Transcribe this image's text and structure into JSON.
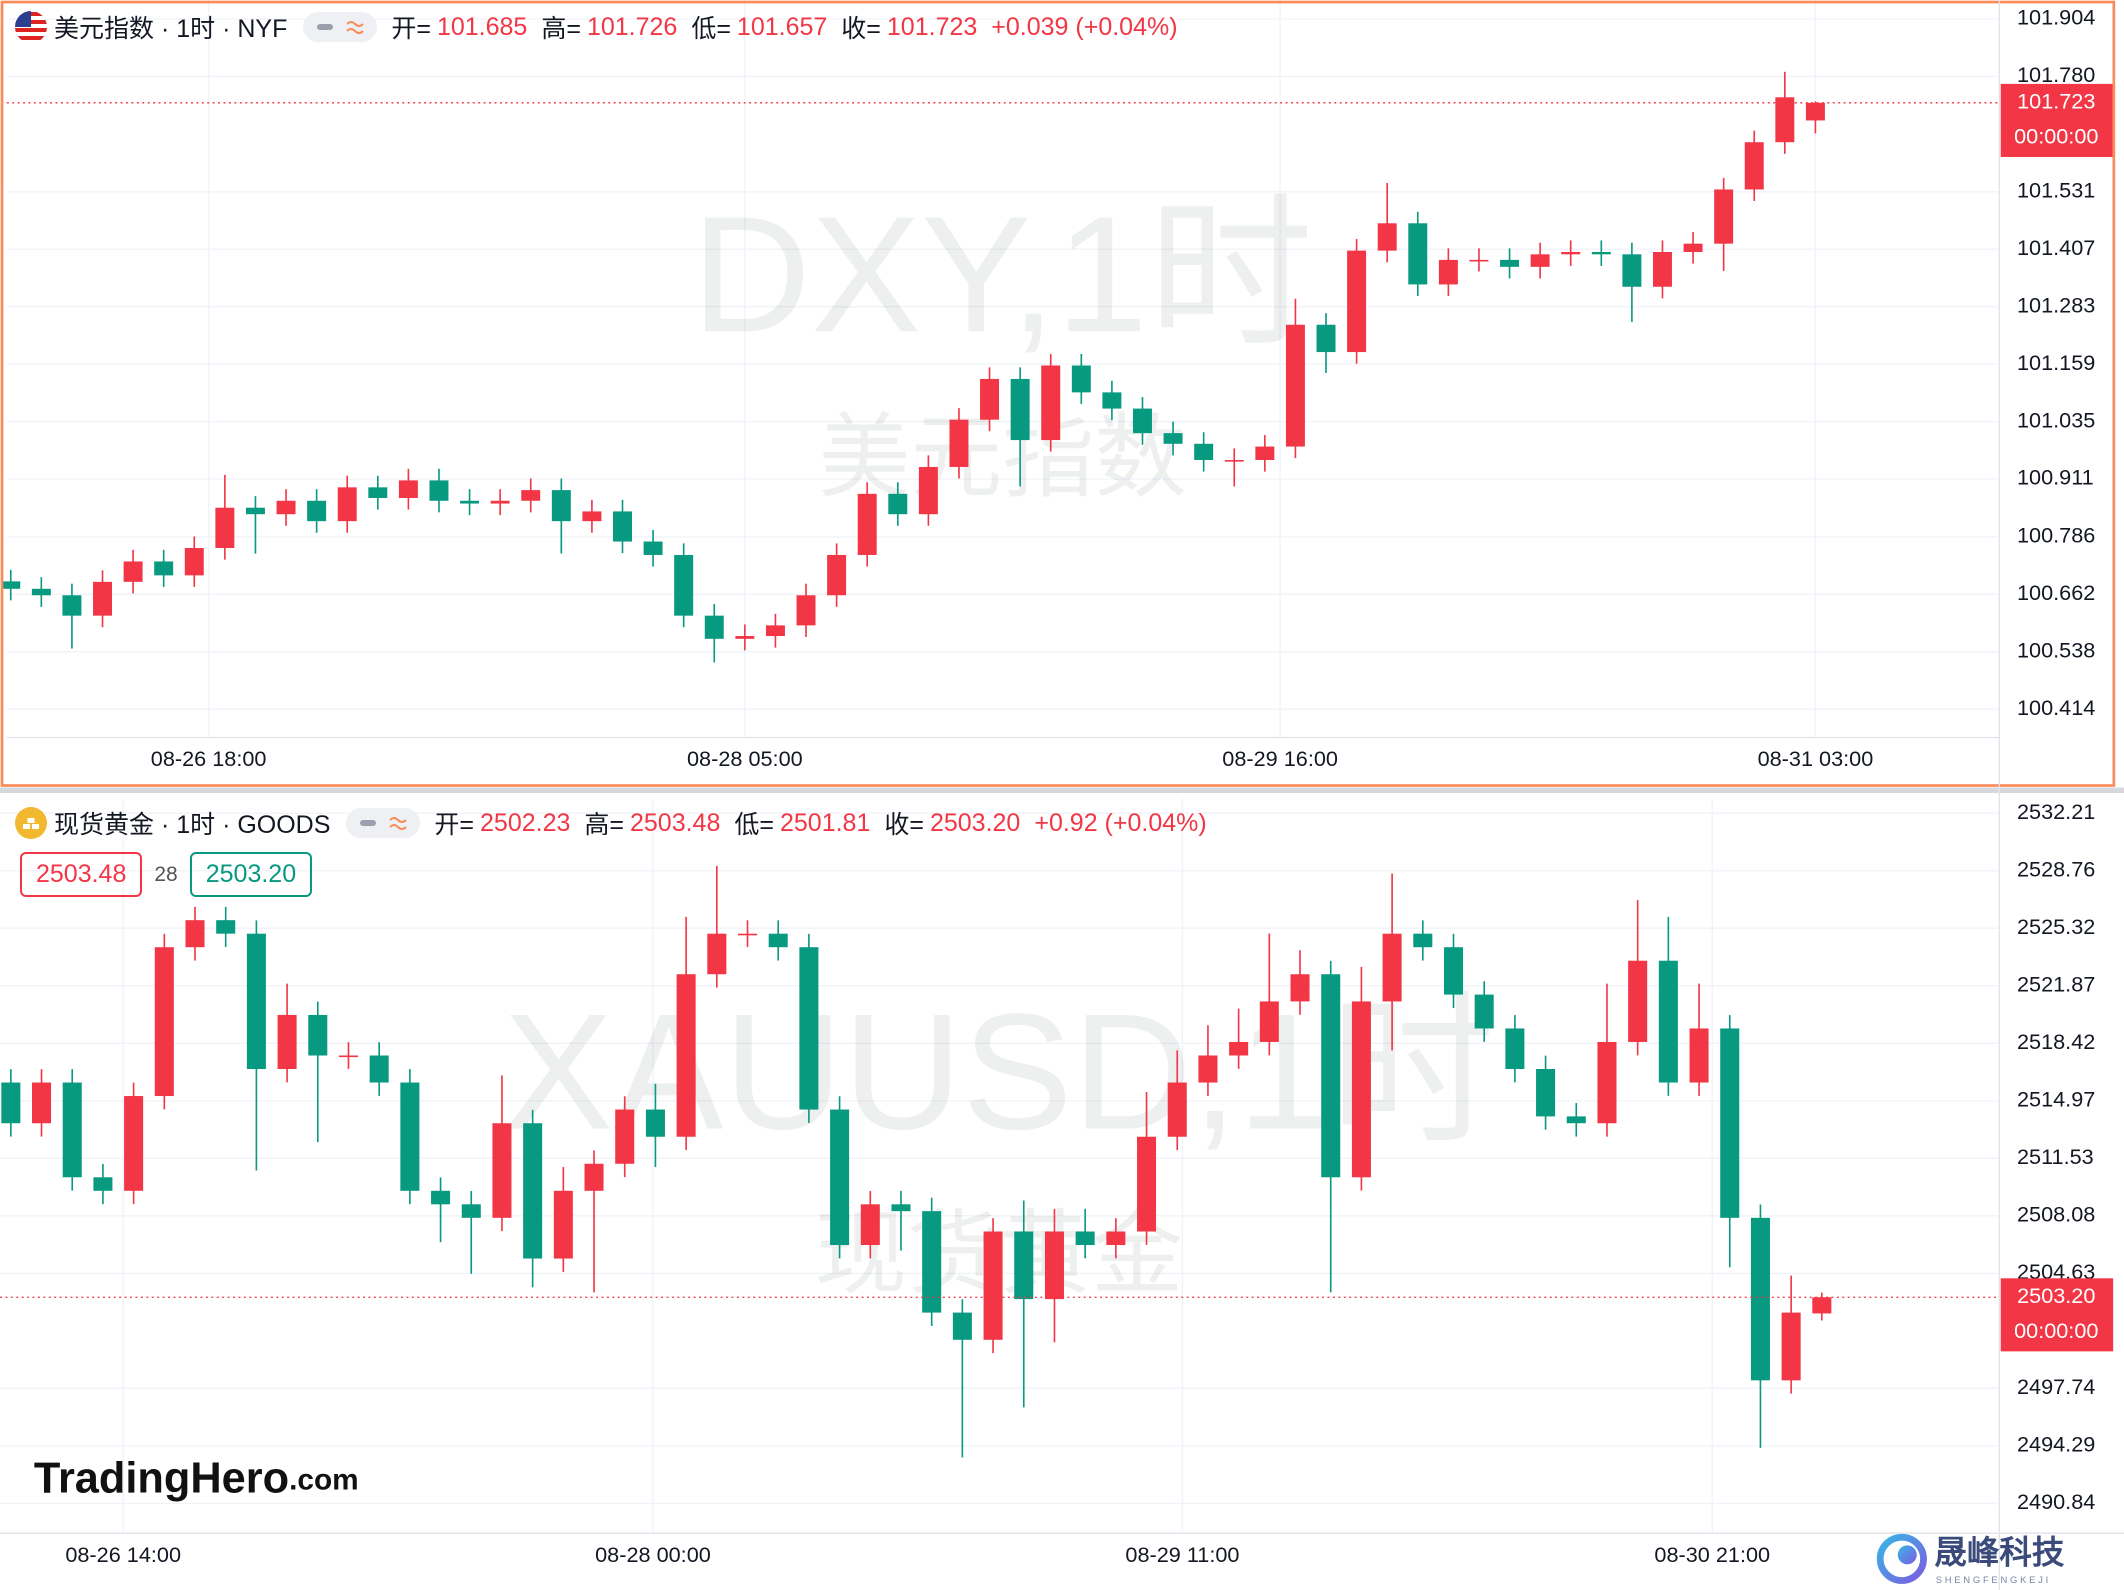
{
  "chart_data": [
    {
      "type": "candlestick",
      "title": "美元指数 · 1时 · NYF",
      "legend": {
        "open_label": "开=",
        "open": "101.685",
        "high_label": "高=",
        "high": "101.726",
        "low_label": "低=",
        "low": "101.657",
        "close_label": "收=",
        "close": "101.723",
        "change": "+0.039 (+0.04%)"
      },
      "watermark": "DXY,1时",
      "watermark_name": "美元指数",
      "price_tag": {
        "price": "101.723",
        "countdown": "00:00:00"
      },
      "colors": {
        "up": "#f23645",
        "down": "#089981"
      },
      "xlim": [
        -0.13,
        64.97
      ],
      "xticks": [
        {
          "value": 6.47,
          "label": "08-26 18:00"
        },
        {
          "value": 24.0,
          "label": "08-28 05:00"
        },
        {
          "value": 41.5,
          "label": "08-29 16:00"
        },
        {
          "value": 59.0,
          "label": "08-31 03:00"
        }
      ],
      "ylim": [
        100.353,
        101.945
      ],
      "yticks": [
        100.414,
        100.538,
        100.662,
        100.786,
        100.911,
        101.035,
        101.159,
        101.283,
        101.407,
        101.531,
        {
          "value": 101.78,
          "label": "101.780"
        },
        101.904
      ],
      "grid": true,
      "open": [
        100.69,
        100.674,
        100.66,
        100.616,
        100.689,
        100.733,
        100.703,
        100.762,
        100.849,
        100.835,
        100.864,
        100.82,
        100.893,
        100.87,
        100.908,
        100.864,
        100.858,
        100.864,
        100.887,
        100.82,
        100.841,
        100.776,
        100.747,
        100.616,
        100.566,
        100.572,
        100.595,
        100.66,
        100.747,
        100.879,
        100.835,
        100.937,
        101.039,
        101.127,
        100.995,
        101.156,
        101.098,
        101.063,
        101.01,
        100.987,
        100.952,
        100.952,
        100.981,
        101.244,
        101.185,
        101.404,
        101.463,
        101.331,
        101.384,
        101.384,
        101.369,
        101.396,
        101.401,
        101.396,
        101.326,
        101.401,
        101.419,
        101.536,
        101.638,
        101.685
      ],
      "high": [
        100.715,
        100.699,
        100.685,
        100.714,
        100.758,
        100.758,
        100.787,
        100.92,
        100.874,
        100.889,
        100.889,
        100.918,
        100.918,
        100.933,
        100.933,
        100.889,
        100.889,
        100.912,
        100.912,
        100.866,
        100.866,
        100.801,
        100.772,
        100.641,
        100.597,
        100.62,
        100.685,
        100.772,
        100.904,
        100.904,
        100.962,
        101.064,
        101.152,
        101.152,
        101.181,
        101.181,
        101.123,
        101.088,
        101.035,
        101.012,
        100.977,
        101.006,
        101.3,
        101.269,
        101.429,
        101.55,
        101.488,
        101.409,
        101.409,
        101.409,
        101.421,
        101.426,
        101.426,
        101.421,
        101.426,
        101.444,
        101.561,
        101.663,
        101.79,
        101.726
      ],
      "low": [
        100.649,
        100.635,
        100.545,
        100.591,
        100.664,
        100.678,
        100.678,
        100.737,
        100.75,
        100.81,
        100.795,
        100.795,
        100.845,
        100.845,
        100.839,
        100.833,
        100.833,
        100.839,
        100.75,
        100.795,
        100.751,
        100.722,
        100.591,
        100.515,
        100.541,
        100.547,
        100.57,
        100.635,
        100.722,
        100.81,
        100.81,
        100.912,
        101.014,
        100.895,
        100.97,
        101.073,
        101.038,
        100.985,
        100.962,
        100.927,
        100.895,
        100.927,
        100.956,
        101.14,
        101.16,
        101.379,
        101.306,
        101.306,
        101.359,
        101.344,
        101.344,
        101.371,
        101.371,
        101.25,
        101.301,
        101.376,
        101.36,
        101.511,
        101.613,
        101.657
      ],
      "close": [
        100.674,
        100.66,
        100.616,
        100.689,
        100.733,
        100.703,
        100.762,
        100.849,
        100.835,
        100.864,
        100.82,
        100.893,
        100.87,
        100.908,
        100.864,
        100.858,
        100.864,
        100.887,
        100.82,
        100.841,
        100.776,
        100.747,
        100.616,
        100.566,
        100.572,
        100.595,
        100.66,
        100.747,
        100.879,
        100.835,
        100.937,
        101.039,
        101.127,
        100.995,
        101.156,
        101.098,
        101.063,
        101.01,
        100.987,
        100.952,
        100.952,
        100.981,
        101.244,
        101.185,
        101.404,
        101.463,
        101.331,
        101.384,
        101.384,
        101.369,
        101.396,
        101.401,
        101.396,
        101.326,
        101.401,
        101.419,
        101.536,
        101.638,
        101.735,
        101.723
      ]
    },
    {
      "type": "candlestick",
      "title": "现货黄金 · 1时 · GOODS",
      "legend": {
        "open_label": "开=",
        "open": "2502.23",
        "high_label": "高=",
        "high": "2503.48",
        "low_label": "低=",
        "low": "2501.81",
        "close_label": "收=",
        "close": "2503.20",
        "change": "+0.92 (+0.04%)"
      },
      "bid_ask": {
        "bid": "2503.48",
        "spread": "28",
        "ask": "2503.20"
      },
      "watermark": "XAUUSD,1时",
      "watermark_name": "现货黄金",
      "price_tag": {
        "price": "2503.20",
        "countdown": "00:00:00"
      },
      "colors": {
        "up": "#f23645",
        "down": "#089981"
      },
      "xlim": [
        -0.353,
        64.74
      ],
      "xticks": [
        {
          "value": 3.66,
          "label": "08-26 14:00"
        },
        {
          "value": 20.92,
          "label": "08-28 00:00"
        },
        {
          "value": 38.17,
          "label": "08-29 11:00"
        },
        {
          "value": 55.43,
          "label": "08-30 21:00"
        }
      ],
      "ylim": [
        2489.06,
        2533.1
      ],
      "yticks": [
        2490.84,
        2494.29,
        2497.74,
        2504.63,
        2508.08,
        2511.53,
        2514.97,
        2518.42,
        2521.87,
        2525.32,
        2528.76,
        2532.21
      ],
      "grid": true,
      "open": [
        2516.07,
        2513.63,
        2516.07,
        2510.39,
        2509.58,
        2515.26,
        2524.18,
        2525.8,
        2524.99,
        2516.88,
        2520.12,
        2517.69,
        2517.69,
        2516.07,
        2509.58,
        2508.77,
        2507.96,
        2513.63,
        2505.52,
        2509.58,
        2511.2,
        2514.45,
        2512.82,
        2522.56,
        2524.99,
        2524.99,
        2524.18,
        2514.45,
        2506.33,
        2508.77,
        2508.36,
        2502.28,
        2500.65,
        2507.14,
        2503.09,
        2507.14,
        2506.33,
        2507.14,
        2512.82,
        2516.07,
        2517.69,
        2518.5,
        2520.93,
        2522.56,
        2510.39,
        2520.93,
        2524.99,
        2524.18,
        2521.34,
        2519.31,
        2516.88,
        2514.04,
        2513.63,
        2518.5,
        2523.37,
        2516.07,
        2519.31,
        2507.96,
        2498.22,
        2502.23
      ],
      "high": [
        2516.87,
        2516.87,
        2516.87,
        2511.19,
        2516.06,
        2524.98,
        2526.6,
        2526.6,
        2525.79,
        2522.0,
        2520.92,
        2518.49,
        2518.49,
        2516.87,
        2510.38,
        2509.57,
        2516.5,
        2514.43,
        2511.0,
        2512.0,
        2515.25,
        2516.0,
        2526.0,
        2529.05,
        2525.79,
        2525.79,
        2524.98,
        2515.25,
        2509.57,
        2509.57,
        2509.16,
        2503.08,
        2507.94,
        2509.0,
        2508.5,
        2508.5,
        2507.94,
        2515.5,
        2518.0,
        2519.5,
        2520.5,
        2525.0,
        2524.0,
        2523.36,
        2523.0,
        2528.6,
        2525.79,
        2524.98,
        2522.14,
        2520.11,
        2517.68,
        2514.84,
        2522.0,
        2527.0,
        2526.0,
        2522.0,
        2520.11,
        2508.76,
        2504.5,
        2503.48
      ],
      "low": [
        2512.83,
        2512.83,
        2509.59,
        2508.78,
        2508.78,
        2514.46,
        2523.38,
        2524.19,
        2510.8,
        2516.08,
        2512.5,
        2516.89,
        2515.27,
        2508.78,
        2506.5,
        2504.6,
        2507.16,
        2503.8,
        2504.72,
        2503.49,
        2510.4,
        2511.0,
        2512.02,
        2521.76,
        2524.19,
        2523.38,
        2513.65,
        2505.53,
        2505.53,
        2506.0,
        2501.48,
        2493.6,
        2499.85,
        2496.6,
        2500.5,
        2505.53,
        2505.53,
        2506.34,
        2512.02,
        2515.27,
        2516.89,
        2517.7,
        2520.13,
        2503.5,
        2509.59,
        2518.0,
        2523.38,
        2520.54,
        2518.51,
        2516.08,
        2513.24,
        2512.83,
        2512.83,
        2517.7,
        2515.27,
        2515.27,
        2505.0,
        2494.17,
        2497.42,
        2501.81
      ],
      "close": [
        2513.63,
        2516.07,
        2510.39,
        2509.58,
        2515.26,
        2524.18,
        2525.8,
        2524.99,
        2516.88,
        2520.12,
        2517.69,
        2517.69,
        2516.07,
        2509.58,
        2508.77,
        2507.96,
        2513.63,
        2505.52,
        2509.58,
        2511.2,
        2514.45,
        2512.82,
        2522.56,
        2524.99,
        2524.99,
        2524.18,
        2514.45,
        2506.33,
        2508.77,
        2508.36,
        2502.28,
        2500.65,
        2507.14,
        2503.09,
        2507.14,
        2506.33,
        2507.14,
        2512.82,
        2516.07,
        2517.69,
        2518.5,
        2520.93,
        2522.56,
        2510.39,
        2520.93,
        2524.99,
        2524.18,
        2521.34,
        2519.31,
        2516.88,
        2514.04,
        2513.63,
        2518.5,
        2523.37,
        2516.07,
        2519.31,
        2507.96,
        2498.22,
        2502.28,
        2503.2
      ]
    }
  ],
  "branding": {
    "logo": "TradingHero",
    "logo_suffix": ".com",
    "company": "晟峰科技",
    "company_en": "SHENGFENGKEJI"
  }
}
